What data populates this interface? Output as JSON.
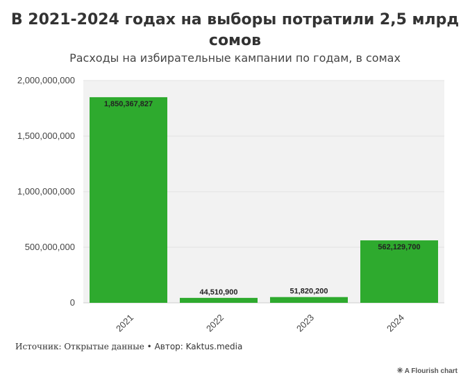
{
  "title": "В 2021-2024 годах на выборы потратили 2,5 млрд сомов",
  "subtitle": "Расходы на избирательные кампании по годам, в сомах",
  "footer": {
    "source": "Источник: Открытые данные • ",
    "author": "Автор: Kaktus.media"
  },
  "credit": {
    "label": "A Flourish chart",
    "icon": "asterisk-icon"
  },
  "colors": {
    "bar": "#2eaa2e",
    "plot_bg": "#f2f2f2",
    "grid": "#e2e2e2"
  },
  "chart_data": {
    "type": "bar",
    "categories": [
      "2021",
      "2022",
      "2023",
      "2024"
    ],
    "values": [
      1850367827,
      44510900,
      51820200,
      562129700
    ],
    "value_labels": [
      "1,850,367,827",
      "44,510,900",
      "51,820,200",
      "562,129,700"
    ],
    "ylim": [
      0,
      2000000000
    ],
    "yticks": [
      0,
      500000000,
      1000000000,
      1500000000,
      2000000000
    ],
    "ytick_labels": [
      "0",
      "500,000,000",
      "1,000,000,000",
      "1,500,000,000",
      "2,000,000,000"
    ],
    "xlabel": "",
    "ylabel": "",
    "grid": true
  }
}
